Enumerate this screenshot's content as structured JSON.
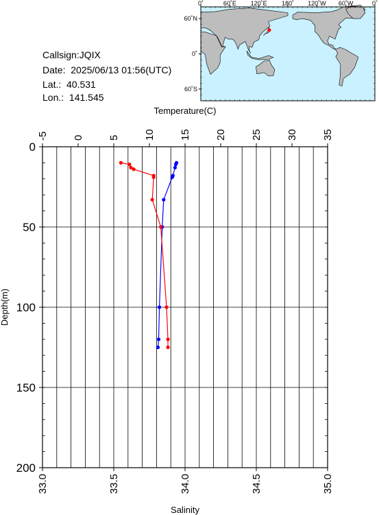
{
  "info": {
    "callsign": "Callsign:JQIX",
    "date": "Date:  2025/06/13 01:56(UTC)",
    "lat": "Lat.:  40.531",
    "lon": "Lon.:  141.545"
  },
  "map": {
    "top_labels": [
      "0˚",
      "60˚E",
      "120˚E",
      "180˚",
      "120˚W",
      "60˚W",
      "0˚"
    ],
    "left_labels": [
      "60˚N",
      "0˚",
      "60˚S"
    ],
    "ocean_color": "#c9f1ff",
    "land_color": "#bdbdbd",
    "marker_color": "#ff0000",
    "station": {
      "lon": 141.545,
      "lat": 40.531
    }
  },
  "chart_data": {
    "type": "line",
    "top_axis_label": "Temperature(C)",
    "bottom_axis_label": "Salinity",
    "left_axis_label": "Depth(m)",
    "temperature_ticks": [
      "-5",
      "0",
      "5",
      "10",
      "15",
      "20",
      "25",
      "30",
      "35"
    ],
    "salinity_ticks": [
      "33.0",
      "33.5",
      "34.0",
      "34.5",
      "35.0"
    ],
    "depth_ticks": [
      "0",
      "50",
      "100",
      "150",
      "200"
    ],
    "temperature_range": [
      -5,
      35
    ],
    "salinity_range": [
      33.0,
      35.0
    ],
    "depth_range": [
      0,
      200
    ],
    "grid": true,
    "series": [
      {
        "variable": "temperature",
        "color": "#0000ff",
        "points": [
          {
            "depth": 10,
            "value": 13.8
          },
          {
            "depth": 11,
            "value": 13.7
          },
          {
            "depth": 13,
            "value": 13.6
          },
          {
            "depth": 18,
            "value": 13.3
          },
          {
            "depth": 19,
            "value": 13.2
          },
          {
            "depth": 33,
            "value": 12.0
          },
          {
            "depth": 50,
            "value": 11.8
          },
          {
            "depth": 100,
            "value": 11.4
          },
          {
            "depth": 120,
            "value": 11.3
          },
          {
            "depth": 125,
            "value": 11.2
          }
        ]
      },
      {
        "variable": "salinity",
        "color": "#ff0000",
        "points": [
          {
            "depth": 10,
            "value": 33.55
          },
          {
            "depth": 11,
            "value": 33.61
          },
          {
            "depth": 13,
            "value": 33.62
          },
          {
            "depth": 14,
            "value": 33.64
          },
          {
            "depth": 18,
            "value": 33.78
          },
          {
            "depth": 19,
            "value": 33.78
          },
          {
            "depth": 33,
            "value": 33.77
          },
          {
            "depth": 50,
            "value": 33.83
          },
          {
            "depth": 100,
            "value": 33.87
          },
          {
            "depth": 120,
            "value": 33.88
          },
          {
            "depth": 125,
            "value": 33.88
          }
        ]
      }
    ]
  }
}
